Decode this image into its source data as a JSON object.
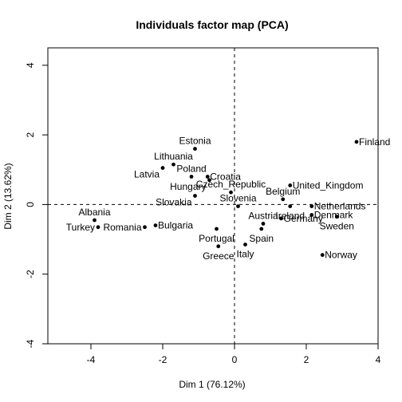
{
  "chart_data": {
    "type": "scatter",
    "title": "Individuals factor map (PCA)",
    "xlabel": "Dim 1 (76.12%)",
    "ylabel": "Dim 2 (13.62%)",
    "xlim": [
      -5.2,
      4.0
    ],
    "ylim": [
      -4.0,
      4.5
    ],
    "xticks": [
      -4,
      -2,
      0,
      2,
      4
    ],
    "yticks": [
      -4,
      -2,
      0,
      2,
      4
    ],
    "reference_lines": {
      "x": 0,
      "y": 0,
      "style": "dashed"
    },
    "grid": false,
    "points": [
      {
        "label": "Finland",
        "x": 3.4,
        "y": 1.8,
        "label_pos": "right"
      },
      {
        "label": "Estonia",
        "x": -1.1,
        "y": 1.6,
        "label_pos": "top"
      },
      {
        "label": "Lithuania",
        "x": -1.7,
        "y": 1.15,
        "label_pos": "top"
      },
      {
        "label": "Latvia",
        "x": -2.0,
        "y": 1.05,
        "label_pos": "below-left"
      },
      {
        "label": "Poland",
        "x": -1.2,
        "y": 0.8,
        "label_pos": "top"
      },
      {
        "label": "Croatia",
        "x": -0.75,
        "y": 0.8,
        "label_pos": "right"
      },
      {
        "label": "Hungary",
        "x": -0.7,
        "y": 0.7,
        "label_pos": "below-left"
      },
      {
        "label": "Czech_Republic",
        "x": -0.1,
        "y": 0.35,
        "label_pos": "top"
      },
      {
        "label": "Slovakia",
        "x": -1.1,
        "y": 0.25,
        "label_pos": "below-left"
      },
      {
        "label": "United_Kingdom",
        "x": 1.55,
        "y": 0.55,
        "label_pos": "right"
      },
      {
        "label": "Belgium",
        "x": 1.35,
        "y": 0.15,
        "label_pos": "top"
      },
      {
        "label": "Slovenia",
        "x": 0.1,
        "y": -0.05,
        "label_pos": "top"
      },
      {
        "label": "Netherlands",
        "x": 2.15,
        "y": -0.05,
        "label_pos": "right"
      },
      {
        "label": "Ireland",
        "x": 1.55,
        "y": -0.05,
        "label_pos": "below"
      },
      {
        "label": "Denmark",
        "x": 2.15,
        "y": -0.3,
        "label_pos": "right"
      },
      {
        "label": "Germany",
        "x": 1.3,
        "y": -0.4,
        "label_pos": "right"
      },
      {
        "label": "Sweden",
        "x": 2.85,
        "y": -0.35,
        "label_pos": "below"
      },
      {
        "label": "Albania",
        "x": -3.9,
        "y": -0.45,
        "label_pos": "top"
      },
      {
        "label": "Turkey",
        "x": -3.8,
        "y": -0.65,
        "label_pos": "left"
      },
      {
        "label": "Romania",
        "x": -2.5,
        "y": -0.65,
        "label_pos": "left"
      },
      {
        "label": "Bulgaria",
        "x": -2.2,
        "y": -0.6,
        "label_pos": "right"
      },
      {
        "label": "Portugal",
        "x": -0.5,
        "y": -0.7,
        "label_pos": "below"
      },
      {
        "label": "Austria",
        "x": 0.8,
        "y": -0.55,
        "label_pos": "top"
      },
      {
        "label": "Spain",
        "x": 0.75,
        "y": -0.7,
        "label_pos": "below"
      },
      {
        "label": "Greece",
        "x": -0.45,
        "y": -1.2,
        "label_pos": "below"
      },
      {
        "label": "Italy",
        "x": 0.3,
        "y": -1.15,
        "label_pos": "below"
      },
      {
        "label": "Norway",
        "x": 2.45,
        "y": -1.45,
        "label_pos": "right"
      }
    ]
  }
}
